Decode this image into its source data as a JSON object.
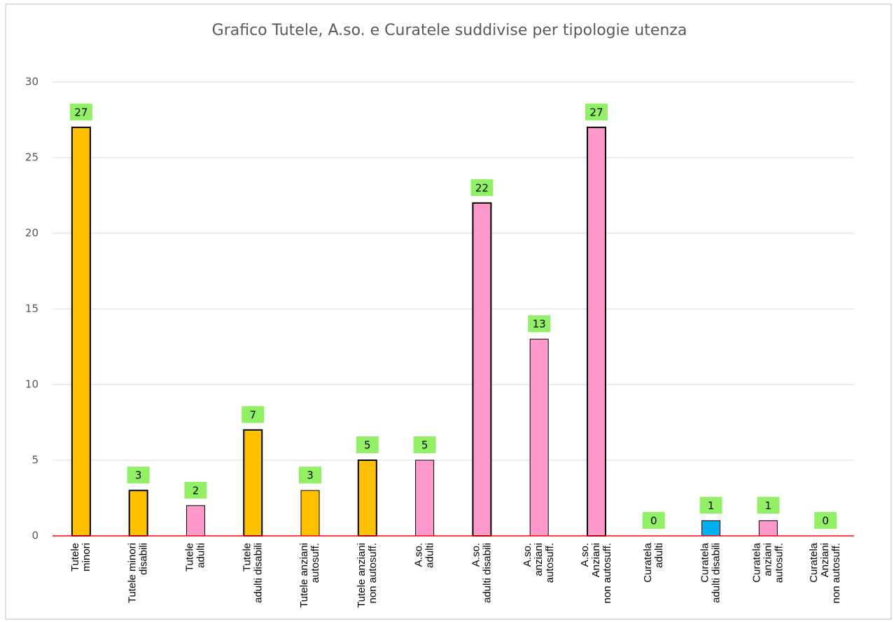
{
  "chart_data": {
    "type": "bar",
    "title": "Grafico Tutele, A.so. e Curatele suddivise per tipologie utenza",
    "categories": [
      "Tutele\nminori",
      "Tutele minori\ndisabili",
      "Tutele\nadulti",
      "Tutele\nadulti disabili",
      "Tutele anziani\nautosuff.",
      "Tutele anziani\nnon autosuff.",
      "A.so.\nadulti",
      "A.so.\nadulti disabili",
      "A.so.\nanziani\nautosuff.",
      "A.so.\nAnziani\nnon autosuff.",
      "Curatela\nadulti",
      "Curatela\nadulti disabili",
      "Curatela\nanziani\nautosuff.",
      "Curatela\nAnziani\nnon autosuff."
    ],
    "values": [
      27,
      3,
      2,
      7,
      3,
      5,
      5,
      22,
      13,
      27,
      0,
      1,
      1,
      0
    ],
    "colors": [
      "#FFC000",
      "#FFC000",
      "#FF99CC",
      "#FFC000",
      "#FFC000",
      "#FFC000",
      "#FF99CC",
      "#FF99CC",
      "#FF99CC",
      "#FF99CC",
      "#FF99CC",
      "#00B0F0",
      "#FF99CC",
      "#FF99CC"
    ],
    "edge_widths": [
      2,
      2,
      1,
      2,
      1,
      2,
      1,
      2,
      1,
      2,
      1,
      1,
      1,
      1
    ],
    "label_color": "#92F066",
    "ylim": [
      0,
      30
    ],
    "yticks": [
      0,
      5,
      10,
      15,
      20,
      25,
      30
    ],
    "grid": true
  }
}
